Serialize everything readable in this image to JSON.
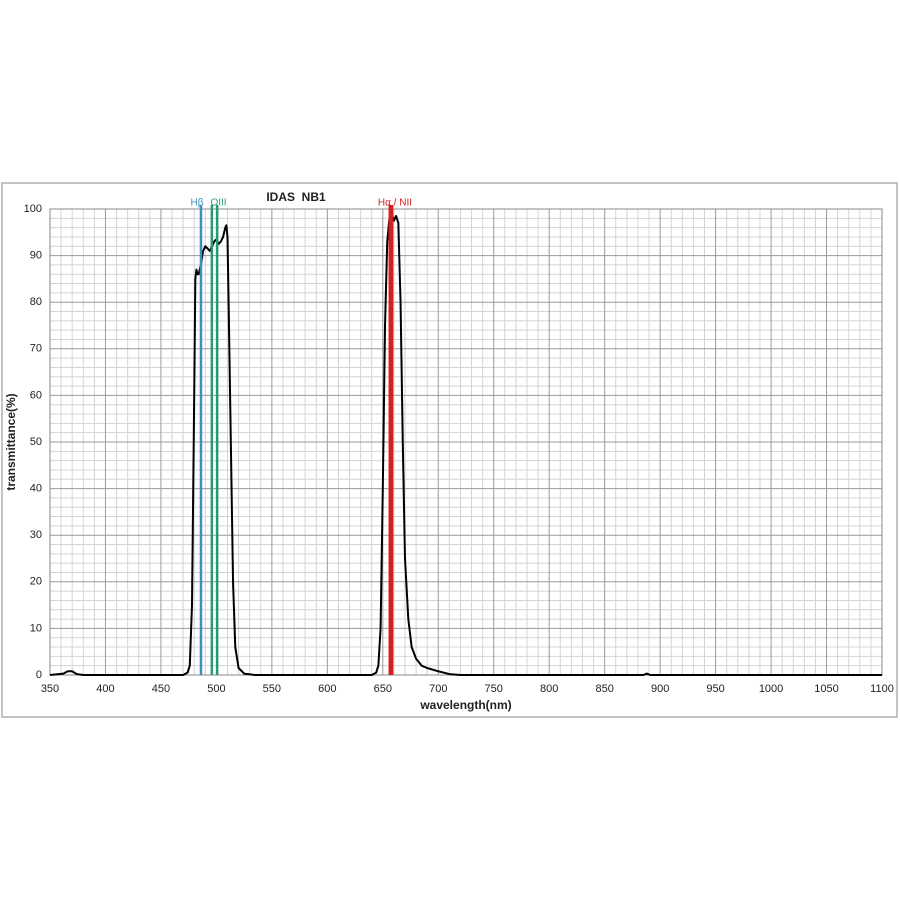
{
  "chart_data": {
    "type": "line",
    "title": "IDAS  NB1",
    "x_label": "wavelength(nm)",
    "y_label": "transmittance(%)",
    "xlim": [
      350,
      1100
    ],
    "xticks": [
      350,
      400,
      450,
      500,
      550,
      600,
      650,
      700,
      750,
      800,
      850,
      900,
      950,
      1000,
      1050,
      1100
    ],
    "ylim": [
      0,
      100
    ],
    "yticks": [
      0,
      10,
      20,
      30,
      40,
      50,
      60,
      70,
      80,
      90,
      100
    ],
    "grid": true,
    "series": [
      {
        "color": "#000000",
        "x": [
          350,
          362,
          366,
          370,
          374,
          380,
          470,
          474,
          476,
          478,
          480,
          481,
          482,
          483,
          484,
          486,
          488,
          490,
          492,
          494,
          496,
          498,
          500,
          502,
          504,
          506,
          508,
          509,
          510,
          511,
          513,
          515,
          517,
          520,
          525,
          535,
          640,
          644,
          646,
          648,
          650,
          652,
          654,
          656,
          658,
          660,
          662,
          664,
          666,
          668,
          670,
          673,
          676,
          680,
          685,
          690,
          700,
          710,
          720,
          885,
          888,
          891,
          1100
        ],
        "values": [
          0,
          0.3,
          0.8,
          0.8,
          0.2,
          0,
          0,
          0.5,
          2,
          15,
          60,
          85,
          87,
          86,
          86,
          88,
          91,
          92,
          91.5,
          91,
          92,
          93,
          93.5,
          92.5,
          93,
          94,
          96,
          96.5,
          94,
          80,
          50,
          20,
          6,
          1.5,
          0.3,
          0,
          0,
          0.5,
          2,
          10,
          40,
          75,
          93,
          98,
          99,
          97.5,
          98.5,
          97,
          80,
          50,
          25,
          12,
          6,
          3.5,
          2,
          1.5,
          0.8,
          0.2,
          0,
          0,
          0.3,
          0,
          0
        ]
      }
    ],
    "reference_lines": [
      {
        "name": "Hβ",
        "color": "#3d8fbf",
        "x": [
          486.1
        ]
      },
      {
        "name": "OIII",
        "color": "#2a9a6e",
        "x": [
          495.9,
          500.7
        ]
      },
      {
        "name": "Hα / NII",
        "color": "#d62020",
        "x": [
          656.3,
          658.4
        ]
      }
    ]
  }
}
